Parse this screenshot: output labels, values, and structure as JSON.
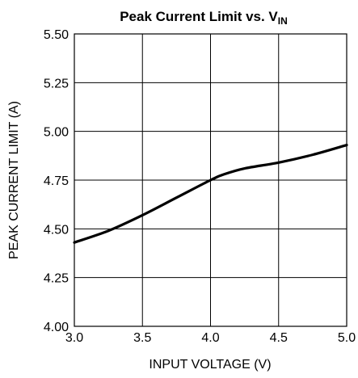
{
  "chart_data": {
    "type": "line",
    "title": "Peak Current Limit vs. V",
    "title_subscript": "IN",
    "xlabel": "INPUT VOLTAGE (V)",
    "ylabel": "PEAK CURRENT LIMIT (A)",
    "xlim": [
      3.0,
      5.0
    ],
    "ylim": [
      4.0,
      5.5
    ],
    "x_ticks": [
      "3.0",
      "3.5",
      "4.0",
      "4.5",
      "5.0"
    ],
    "y_ticks": [
      "4.00",
      "4.25",
      "4.50",
      "4.75",
      "5.00",
      "5.25",
      "5.50"
    ],
    "grid": true,
    "legend": "none",
    "series": [
      {
        "x": [
          3.0,
          3.25,
          3.5,
          3.75,
          4.0,
          4.1,
          4.25,
          4.5,
          4.75,
          5.0
        ],
        "y": [
          4.43,
          4.49,
          4.57,
          4.66,
          4.75,
          4.78,
          4.81,
          4.84,
          4.88,
          4.93
        ]
      }
    ]
  }
}
